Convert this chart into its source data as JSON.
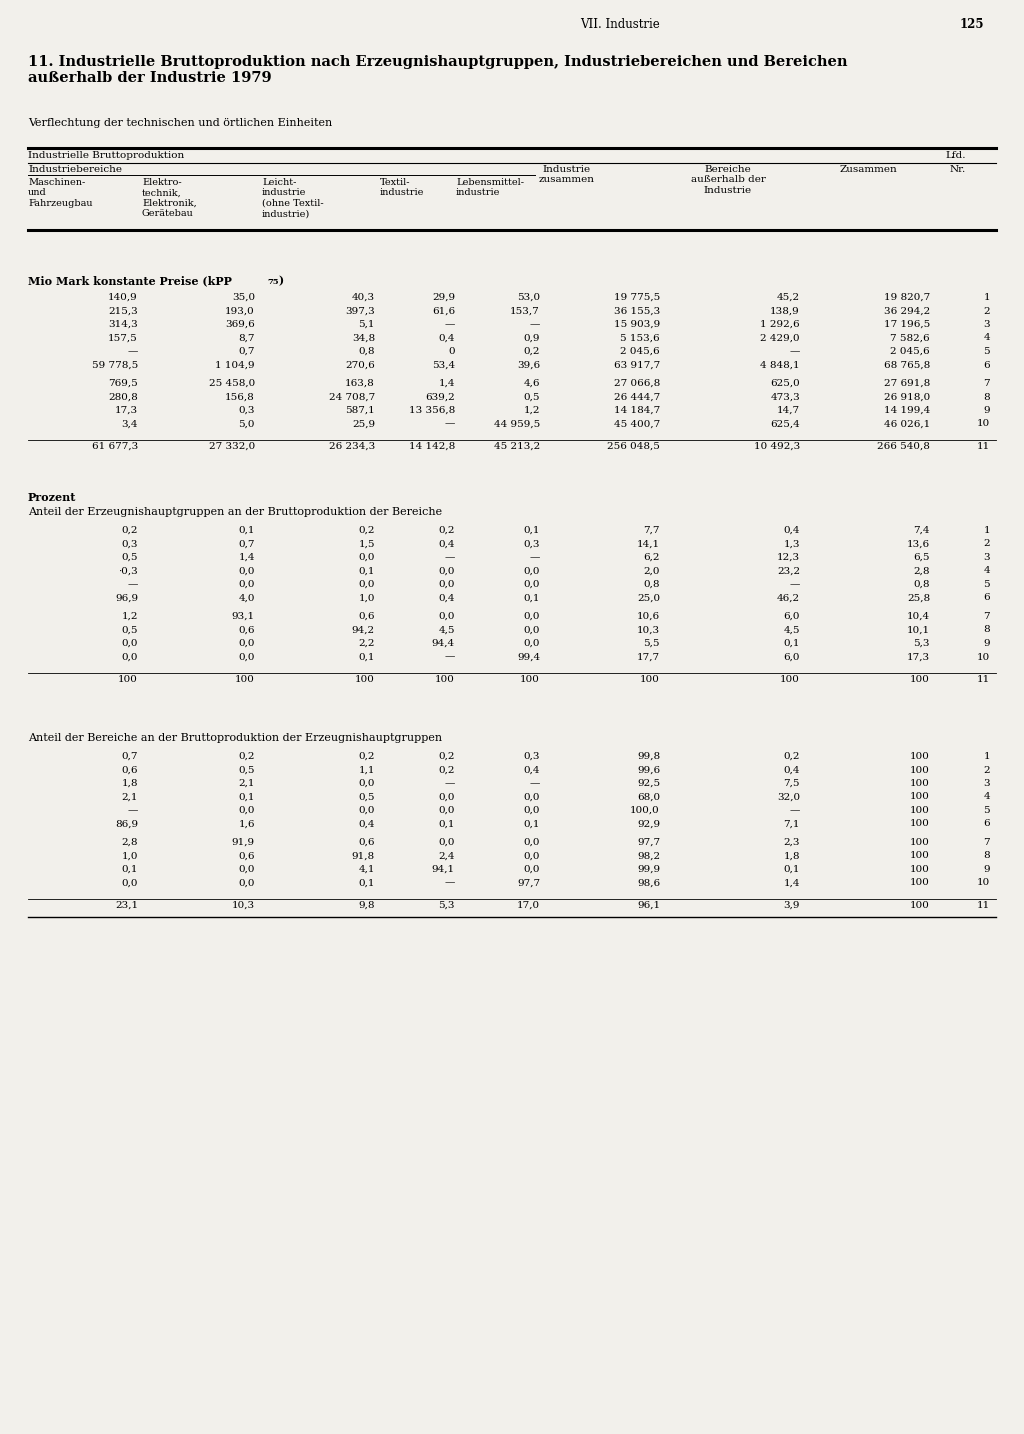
{
  "page_header": "VII. Industrie",
  "page_number": "125",
  "title": "11. Industrielle Bruttoproduktion nach Erzeugnishauptgruppen, Industriebereichen und Bereichen\naußerhalb der Industrie 1979",
  "subtitle": "Verflechtung der technischen und örtlichen Einheiten",
  "section1_label": "Mio Mark konstante Preise (kPP",
  "section1_subscript": "75",
  "section1_label_end": ")",
  "section2_label": "Prozent",
  "section2_sublabel": "Anteil der Erzeugnishauptgruppen an der Bruttoproduktion der Bereiche",
  "section3_sublabel": "Anteil der Bereiche an der Bruttoproduktion der Erzeugnishauptgruppen",
  "section1_rows": [
    [
      "140,9",
      "35,0",
      "40,3",
      "29,9",
      "53,0",
      "19 775,5",
      "45,2",
      "19 820,7",
      "1"
    ],
    [
      "215,3",
      "193,0",
      "397,3",
      "61,6",
      "153,7",
      "36 155,3",
      "138,9",
      "36 294,2",
      "2"
    ],
    [
      "314,3",
      "369,6",
      "5,1",
      "—",
      "—",
      "15 903,9",
      "1 292,6",
      "17 196,5",
      "3"
    ],
    [
      "157,5",
      "8,7",
      "34,8",
      "0,4",
      "0,9",
      "5 153,6",
      "2 429,0",
      "7 582,6",
      "4"
    ],
    [
      "—",
      "0,7",
      "0,8",
      "0",
      "0,2",
      "2 045,6",
      "—",
      "2 045,6",
      "5"
    ],
    [
      "59 778,5",
      "1 104,9",
      "270,6",
      "53,4",
      "39,6",
      "63 917,7",
      "4 848,1",
      "68 765,8",
      "6"
    ],
    [
      "769,5",
      "25 458,0",
      "163,8",
      "1,4",
      "4,6",
      "27 066,8",
      "625,0",
      "27 691,8",
      "7"
    ],
    [
      "280,8",
      "156,8",
      "24 708,7",
      "639,2",
      "0,5",
      "26 444,7",
      "473,3",
      "26 918,0",
      "8"
    ],
    [
      "17,3",
      "0,3",
      "587,1",
      "13 356,8",
      "1,2",
      "14 184,7",
      "14,7",
      "14 199,4",
      "9"
    ],
    [
      "3,4",
      "5,0",
      "25,9",
      "—",
      "44 959,5",
      "45 400,7",
      "625,4",
      "46 026,1",
      "10"
    ],
    [
      "61 677,3",
      "27 332,0",
      "26 234,3",
      "14 142,8",
      "45 213,2",
      "256 048,5",
      "10 492,3",
      "266 540,8",
      "11"
    ]
  ],
  "section2_rows": [
    [
      "0,2",
      "0,1",
      "0,2",
      "0,2",
      "0,1",
      "7,7",
      "0,4",
      "7,4",
      "1"
    ],
    [
      "0,3",
      "0,7",
      "1,5",
      "0,4",
      "0,3",
      "14,1",
      "1,3",
      "13,6",
      "2"
    ],
    [
      "0,5",
      "1,4",
      "0,0",
      "—",
      "—",
      "6,2",
      "12,3",
      "6,5",
      "3"
    ],
    [
      "·0,3",
      "0,0",
      "0,1",
      "0,0",
      "0,0",
      "2,0",
      "23,2",
      "2,8",
      "4"
    ],
    [
      "—",
      "0,0",
      "0,0",
      "0,0",
      "0,0",
      "0,8",
      "—",
      "0,8",
      "5"
    ],
    [
      "96,9",
      "4,0",
      "1,0",
      "0,4",
      "0,1",
      "25,0",
      "46,2",
      "25,8",
      "6"
    ],
    [
      "1,2",
      "93,1",
      "0,6",
      "0,0",
      "0,0",
      "10,6",
      "6,0",
      "10,4",
      "7"
    ],
    [
      "0,5",
      "0,6",
      "94,2",
      "4,5",
      "0,0",
      "10,3",
      "4,5",
      "10,1",
      "8"
    ],
    [
      "0,0",
      "0,0",
      "2,2",
      "94,4",
      "0,0",
      "5,5",
      "0,1",
      "5,3",
      "9"
    ],
    [
      "0,0",
      "0,0",
      "0,1",
      "—",
      "99,4",
      "17,7",
      "6,0",
      "17,3",
      "10"
    ],
    [
      "100",
      "100",
      "100",
      "100",
      "100",
      "100",
      "100",
      "100",
      "11"
    ]
  ],
  "section3_rows": [
    [
      "0,7",
      "0,2",
      "0,2",
      "0,2",
      "0,3",
      "99,8",
      "0,2",
      "100",
      "1"
    ],
    [
      "0,6",
      "0,5",
      "1,1",
      "0,2",
      "0,4",
      "99,6",
      "0,4",
      "100",
      "2"
    ],
    [
      "1,8",
      "2,1",
      "0,0",
      "—",
      "—",
      "92,5",
      "7,5",
      "100",
      "3"
    ],
    [
      "2,1",
      "0,1",
      "0,5",
      "0,0",
      "0,0",
      "68,0",
      "32,0",
      "100",
      "4"
    ],
    [
      "—",
      "0,0",
      "0,0",
      "0,0",
      "0,0",
      "100,0",
      "—",
      "100",
      "5"
    ],
    [
      "86,9",
      "1,6",
      "0,4",
      "0,1",
      "0,1",
      "92,9",
      "7,1",
      "100",
      "6"
    ],
    [
      "2,8",
      "91,9",
      "0,6",
      "0,0",
      "0,0",
      "97,7",
      "2,3",
      "100",
      "7"
    ],
    [
      "1,0",
      "0,6",
      "91,8",
      "2,4",
      "0,0",
      "98,2",
      "1,8",
      "100",
      "8"
    ],
    [
      "0,1",
      "0,0",
      "4,1",
      "94,1",
      "0,0",
      "99,9",
      "0,1",
      "100",
      "9"
    ],
    [
      "0,0",
      "0,0",
      "0,1",
      "—",
      "97,7",
      "98,6",
      "1,4",
      "100",
      "10"
    ],
    [
      "23,1",
      "10,3",
      "9,8",
      "5,3",
      "17,0",
      "96,1",
      "3,9",
      "100",
      "11"
    ]
  ],
  "background_color": "#f2f0eb",
  "text_color": "#000000"
}
